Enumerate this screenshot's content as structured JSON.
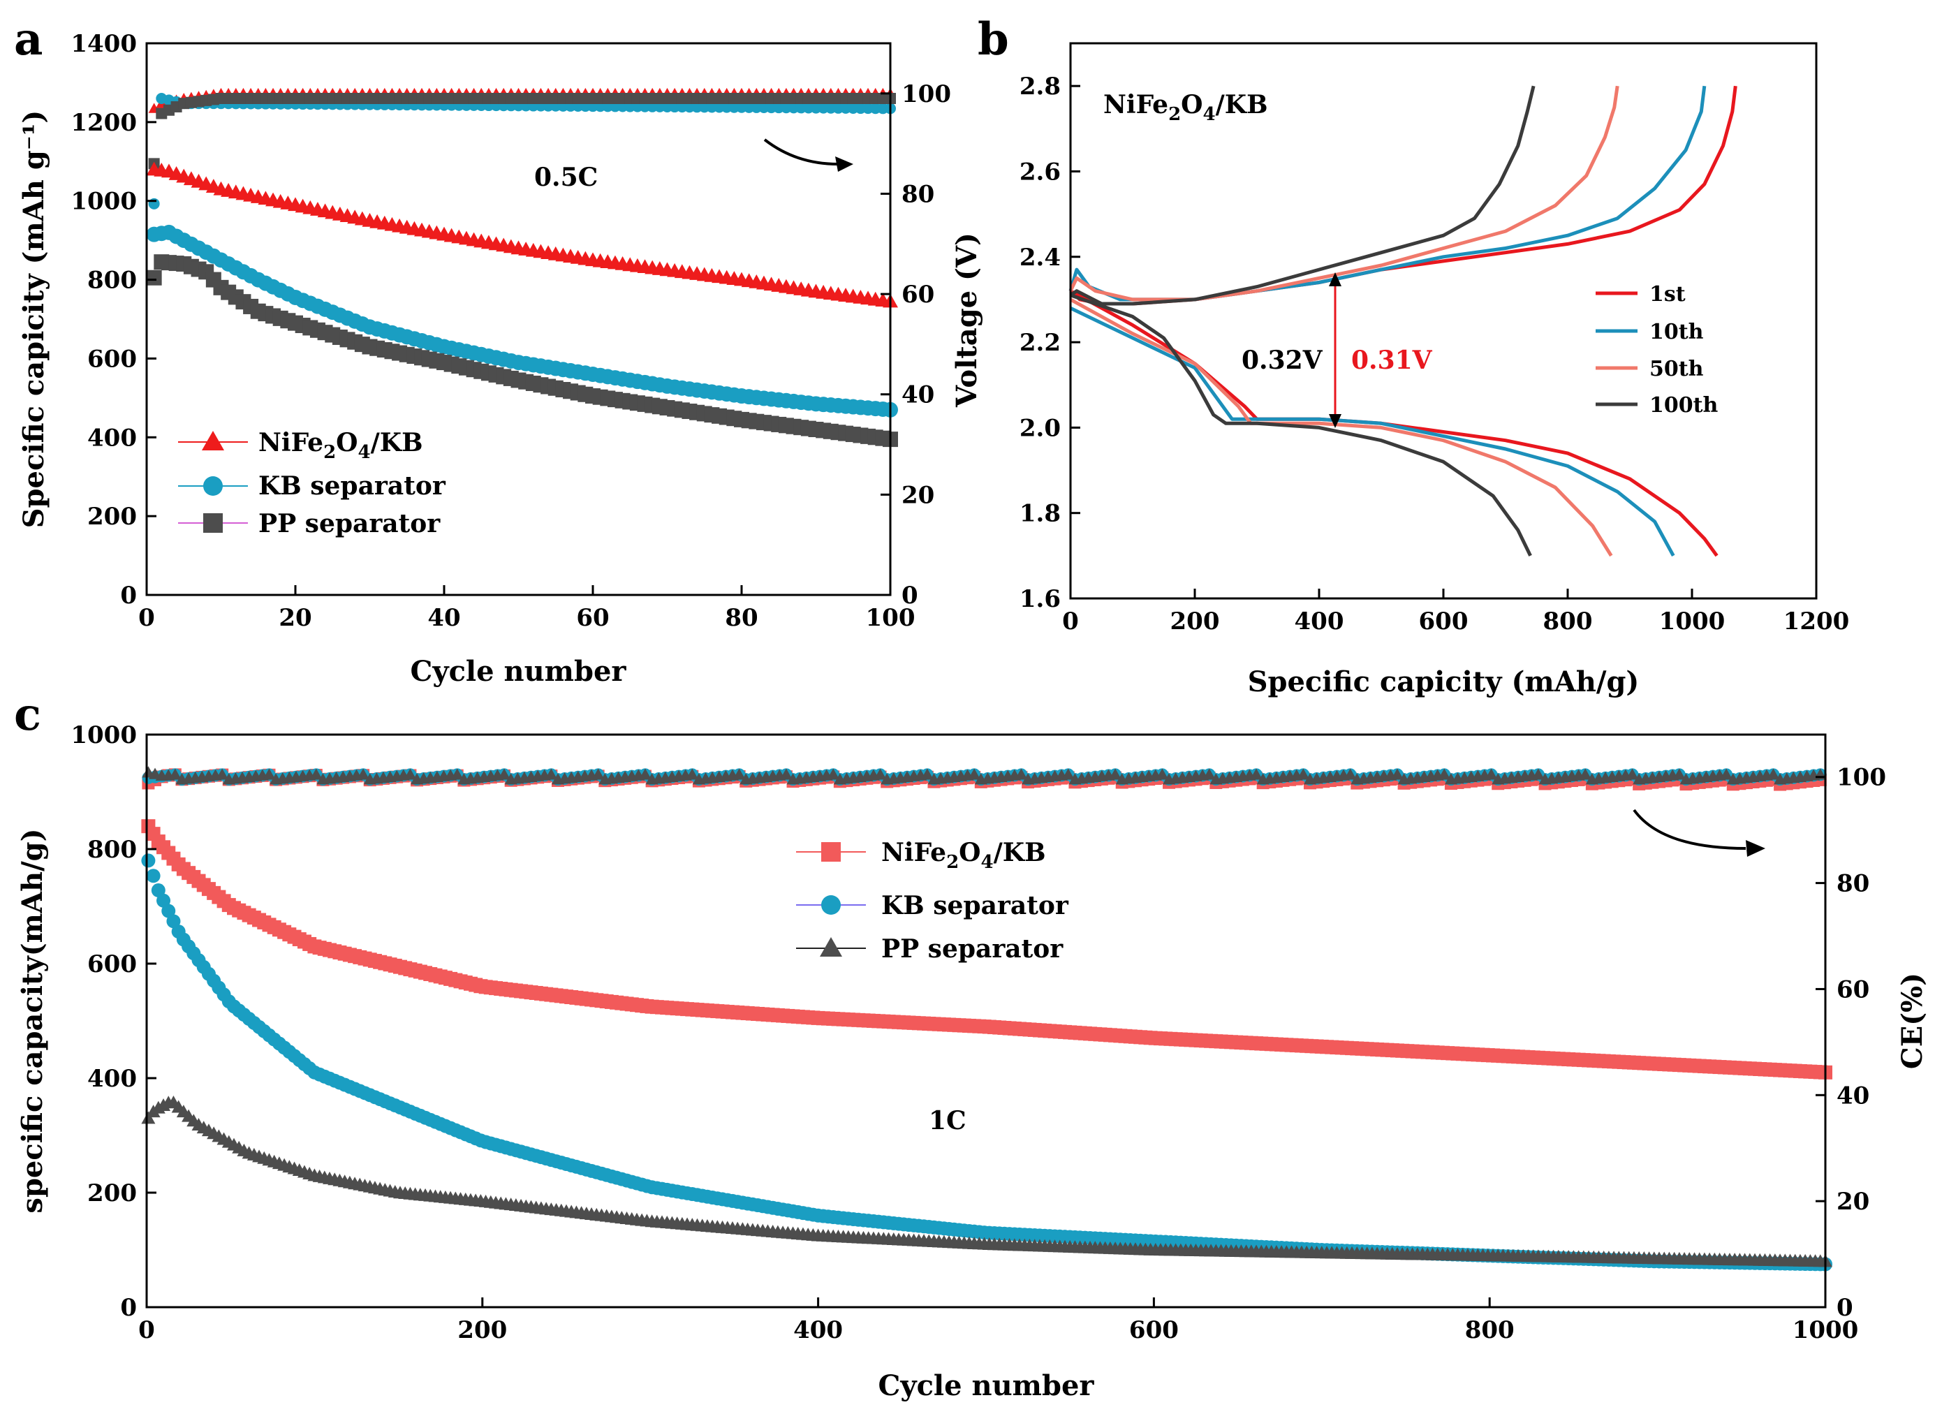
{
  "chart_data": [
    {
      "panel": "a",
      "type": "scatter",
      "xlabel": "Cycle number",
      "ylabel": "Specific capicity (mAh g⁻¹)",
      "xlim": [
        0,
        100
      ],
      "ylim": [
        0,
        1400
      ],
      "y2lim": [
        0,
        110
      ],
      "x_ticks": [
        0,
        20,
        40,
        60,
        80,
        100
      ],
      "y_ticks": [
        0,
        200,
        400,
        600,
        800,
        1000,
        1200,
        1400
      ],
      "y2_ticks": [
        0,
        20,
        40,
        60,
        80,
        100
      ],
      "annotation": "0.5C",
      "legend": [
        {
          "name": "NiFe2O4/KB",
          "label_base": "NiFe",
          "sub1": "2",
          "mid": "O",
          "sub2": "4",
          "tail": "/KB",
          "marker": "triangle",
          "color": "#ee1c1c"
        },
        {
          "name": "KB separator",
          "label": "KB separator",
          "marker": "circle",
          "color": "#1a9ec2"
        },
        {
          "name": "PP separator",
          "label": "PP separator",
          "marker": "square",
          "color": "#4d4d4d"
        }
      ],
      "series": [
        {
          "name": "NiFe2O4/KB",
          "x": [
            1,
            3,
            10,
            20,
            30,
            40,
            50,
            60,
            70,
            80,
            90,
            100
          ],
          "values": [
            1080,
            1075,
            1030,
            990,
            950,
            915,
            880,
            850,
            825,
            800,
            770,
            745
          ]
        },
        {
          "name": "KB separator",
          "x": [
            1,
            3,
            5,
            10,
            15,
            20,
            30,
            40,
            50,
            60,
            70,
            80,
            90,
            100
          ],
          "values": [
            915,
            920,
            900,
            850,
            800,
            755,
            680,
            630,
            590,
            560,
            530,
            505,
            485,
            470
          ]
        },
        {
          "name": "PP separator",
          "x": [
            1,
            2,
            5,
            8,
            10,
            15,
            20,
            30,
            40,
            50,
            60,
            70,
            80,
            90,
            100
          ],
          "values": [
            805,
            845,
            840,
            820,
            780,
            720,
            690,
            630,
            590,
            545,
            505,
            475,
            445,
            420,
            395
          ]
        }
      ],
      "ce_series": [
        {
          "name": "NiFe2O4/KB",
          "x": [
            1,
            2,
            5,
            10,
            100
          ],
          "values": [
            97,
            98,
            99,
            100,
            100
          ]
        },
        {
          "name": "KB separator",
          "x": [
            1,
            2,
            5,
            10,
            100
          ],
          "values": [
            78,
            99,
            98,
            98,
            97
          ]
        },
        {
          "name": "PP separator",
          "x": [
            1,
            2,
            5,
            10,
            100
          ],
          "values": [
            86,
            96,
            98,
            99,
            99
          ]
        }
      ]
    },
    {
      "panel": "b",
      "type": "line",
      "xlabel": "Specific capicity (mAh/g)",
      "ylabel": "Voltage (V)",
      "xlim": [
        0,
        1200
      ],
      "ylim": [
        1.6,
        2.9
      ],
      "x_ticks": [
        0,
        200,
        400,
        600,
        800,
        1000,
        1200
      ],
      "y_ticks": [
        1.6,
        1.8,
        2.0,
        2.2,
        2.4,
        2.6,
        2.8
      ],
      "title_parts": {
        "base": "NiFe",
        "sub1": "2",
        "mid": "O",
        "sub2": "4",
        "tail": "/KB"
      },
      "annotation_left": "0.32V",
      "annotation_right": "0.31V",
      "annotation_right_color": "#ee1c1c",
      "legend": [
        {
          "name": "1st",
          "color": "#e8171e"
        },
        {
          "name": "10th",
          "color": "#1c8fba"
        },
        {
          "name": "50th",
          "color": "#f0786a"
        },
        {
          "name": "100th",
          "color": "#3b3b3b"
        }
      ],
      "series": [
        {
          "name": "1st",
          "discharge": {
            "x": [
              0,
              100,
              200,
              280,
              300,
              400,
              500,
              600,
              700,
              800,
              900,
              980,
              1020,
              1040
            ],
            "values": [
              2.32,
              2.24,
              2.15,
              2.05,
              2.02,
              2.02,
              2.01,
              1.99,
              1.97,
              1.94,
              1.88,
              1.8,
              1.74,
              1.7
            ]
          },
          "charge": {
            "x": [
              0,
              15,
              50,
              100,
              200,
              300,
              400,
              500,
              600,
              700,
              800,
              900,
              980,
              1020,
              1050,
              1065,
              1070
            ],
            "values": [
              2.32,
              2.3,
              2.29,
              2.29,
              2.3,
              2.32,
              2.34,
              2.37,
              2.39,
              2.41,
              2.43,
              2.46,
              2.51,
              2.57,
              2.66,
              2.74,
              2.8
            ]
          }
        },
        {
          "name": "10th",
          "discharge": {
            "x": [
              0,
              100,
              200,
              240,
              260,
              400,
              500,
              600,
              700,
              800,
              880,
              940,
              970
            ],
            "values": [
              2.28,
              2.21,
              2.14,
              2.06,
              2.02,
              2.02,
              2.01,
              1.98,
              1.95,
              1.91,
              1.85,
              1.78,
              1.7
            ]
          },
          "charge": {
            "x": [
              0,
              10,
              30,
              80,
              200,
              300,
              400,
              500,
              600,
              700,
              800,
              880,
              940,
              990,
              1015,
              1020
            ],
            "values": [
              2.32,
              2.37,
              2.33,
              2.3,
              2.3,
              2.32,
              2.34,
              2.37,
              2.4,
              2.42,
              2.45,
              2.49,
              2.56,
              2.65,
              2.74,
              2.8
            ]
          }
        },
        {
          "name": "50th",
          "discharge": {
            "x": [
              0,
              100,
              200,
              270,
              290,
              400,
              500,
              600,
              700,
              780,
              840,
              870
            ],
            "values": [
              2.3,
              2.22,
              2.15,
              2.05,
              2.01,
              2.01,
              2.0,
              1.97,
              1.92,
              1.86,
              1.77,
              1.7
            ]
          },
          "charge": {
            "x": [
              0,
              10,
              40,
              100,
              200,
              300,
              400,
              500,
              600,
              700,
              780,
              830,
              860,
              875,
              880
            ],
            "values": [
              2.32,
              2.35,
              2.32,
              2.3,
              2.3,
              2.32,
              2.35,
              2.38,
              2.42,
              2.46,
              2.52,
              2.59,
              2.68,
              2.75,
              2.8
            ]
          }
        },
        {
          "name": "100th",
          "discharge": {
            "x": [
              0,
              100,
              150,
              200,
              230,
              250,
              300,
              400,
              500,
              600,
              680,
              720,
              740
            ],
            "values": [
              2.31,
              2.26,
              2.21,
              2.11,
              2.03,
              2.01,
              2.01,
              2.0,
              1.97,
              1.92,
              1.84,
              1.76,
              1.7
            ]
          },
          "charge": {
            "x": [
              0,
              10,
              50,
              100,
              200,
              300,
              400,
              500,
              600,
              650,
              690,
              720,
              735,
              745
            ],
            "values": [
              2.31,
              2.32,
              2.29,
              2.29,
              2.3,
              2.33,
              2.37,
              2.41,
              2.45,
              2.49,
              2.57,
              2.66,
              2.74,
              2.8
            ]
          }
        }
      ]
    },
    {
      "panel": "c",
      "type": "scatter",
      "xlabel": "Cycle number",
      "ylabel": "specific capacity(mAh/g)",
      "y2label": "CE(%)",
      "xlim": [
        0,
        1000
      ],
      "ylim": [
        0,
        1000
      ],
      "y2lim": [
        0,
        108
      ],
      "x_ticks": [
        0,
        200,
        400,
        600,
        800,
        1000
      ],
      "y_ticks": [
        0,
        200,
        400,
        600,
        800,
        1000
      ],
      "y2_ticks": [
        0,
        20,
        40,
        60,
        80,
        100
      ],
      "annotation": "1C",
      "legend": [
        {
          "name": "NiFe2O4/KB",
          "label_base": "NiFe",
          "sub1": "2",
          "mid": "O",
          "sub2": "4",
          "tail": "/KB",
          "marker": "square",
          "color": "#f25a5a"
        },
        {
          "name": "KB separator",
          "label": "KB separator",
          "marker": "circle",
          "color": "#1a9ec2"
        },
        {
          "name": "PP separator",
          "label": "PP separator",
          "marker": "triangle",
          "color": "#4d4d4d"
        }
      ],
      "series": [
        {
          "name": "NiFe2O4/KB",
          "x": [
            2,
            5,
            20,
            50,
            100,
            200,
            300,
            400,
            500,
            600,
            700,
            800,
            900,
            1000
          ],
          "values": [
            840,
            820,
            770,
            700,
            630,
            560,
            525,
            505,
            490,
            470,
            455,
            440,
            425,
            410
          ]
        },
        {
          "name": "KB separator",
          "x": [
            2,
            5,
            20,
            50,
            100,
            200,
            300,
            400,
            500,
            600,
            700,
            800,
            900,
            1000
          ],
          "values": [
            780,
            740,
            650,
            530,
            410,
            290,
            210,
            160,
            130,
            115,
            100,
            90,
            80,
            75
          ]
        },
        {
          "name": "PP separator",
          "x": [
            1,
            5,
            15,
            30,
            60,
            100,
            150,
            200,
            300,
            400,
            500,
            600,
            700,
            800,
            900,
            1000
          ],
          "values": [
            330,
            345,
            360,
            320,
            270,
            230,
            200,
            185,
            150,
            125,
            110,
            100,
            95,
            90,
            85,
            80
          ]
        }
      ],
      "ce_series": [
        {
          "name": "NiFe2O4/KB",
          "x": [
            1,
            10,
            1000
          ],
          "values": [
            99,
            100,
            99
          ]
        },
        {
          "name": "KB separator",
          "x": [
            1,
            10,
            1000
          ],
          "values": [
            100,
            100,
            100
          ]
        },
        {
          "name": "PP separator",
          "x": [
            1,
            10,
            1000
          ],
          "values": [
            101,
            100,
            100
          ]
        }
      ]
    }
  ]
}
